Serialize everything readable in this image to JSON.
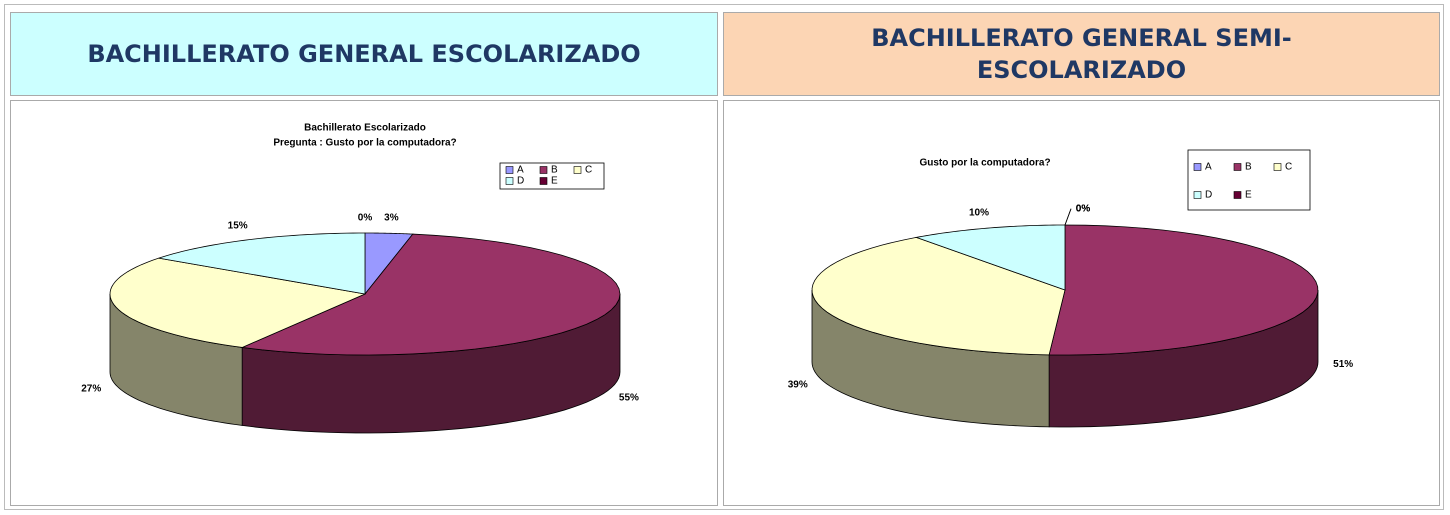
{
  "table": {
    "headers": [
      "BACHILLERATO GENERAL ESCOLARIZADO",
      "BACHILLERATO GENERAL SEMI-ESCOLARIZADO"
    ]
  },
  "chart_data": [
    {
      "type": "pie3d",
      "title": "Bachillerato Escolarizado",
      "subtitle": "Pregunta : Gusto por la computadora?",
      "categories": [
        "A",
        "B",
        "C",
        "D",
        "E"
      ],
      "values": [
        3,
        55,
        27,
        15,
        0
      ],
      "value_labels": [
        "3%",
        "55%",
        "27%",
        "15%",
        "0%"
      ],
      "colors": [
        "#9999ff",
        "#993366",
        "#ffffcc",
        "#ccffff",
        "#660033"
      ]
    },
    {
      "type": "pie3d",
      "title": "Gusto por la computadora?",
      "categories": [
        "A",
        "B",
        "C",
        "D",
        "E"
      ],
      "values": [
        0,
        51,
        39,
        10,
        0
      ],
      "value_labels": [
        "0%",
        "51%",
        "39%",
        "10%",
        "0%"
      ],
      "colors": [
        "#9999ff",
        "#993366",
        "#ffffcc",
        "#ccffff",
        "#660033"
      ]
    }
  ]
}
